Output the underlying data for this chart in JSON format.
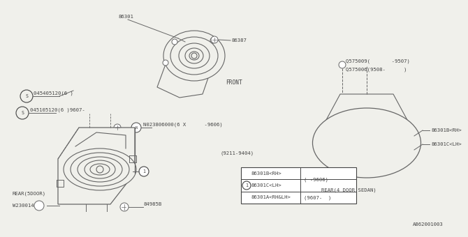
{
  "bg_color": "#f0f0eb",
  "line_color": "#666666",
  "text_color": "#444444",
  "diagram_id": "A862001003",
  "labels": {
    "front_speaker_num": "86301",
    "front_screw_num": "86387",
    "front_label": "FRONT",
    "s_part1": "045405120(6 )",
    "s_part2": "045105120(6 )9607-",
    "n_part": "N023806000(6 X      -9606)",
    "rear5_caption": "REAR(5DOOR)",
    "rear5_w": "W230014",
    "rear5_b": "84985B",
    "rear4_q1": "Q575009(       -9507)",
    "rear4_q2": "Q575006(9508-      )",
    "rear4_rh": "86301B<RH>",
    "rear4_lh": "86301C<LH>",
    "rear4_caption": "REAR(4 DOOR SEDAN)",
    "note": "(9211-9404)",
    "legend_r1a": "86301B<RH>",
    "legend_r1b": "( -9606)",
    "legend_r2a": "86301C<LH>",
    "legend_r3a": "86301A<RH&LH>",
    "legend_r3b": "(9607-  )"
  }
}
